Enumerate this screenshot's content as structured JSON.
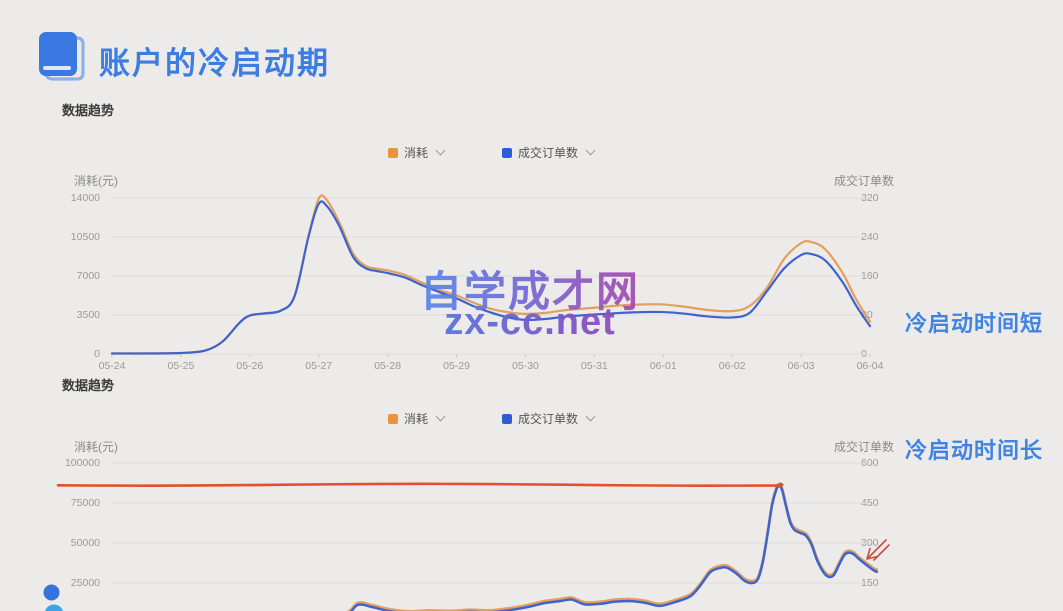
{
  "page": {
    "background": "#ecebea"
  },
  "header": {
    "title": "账户的冷启动期"
  },
  "watermark": {
    "line1": "自学成才网",
    "line2": "zx-cc.net"
  },
  "chart_data": [
    {
      "type": "line",
      "section_label": "数据趋势",
      "legend": [
        {
          "label": "消耗",
          "color": "#e8943c"
        },
        {
          "label": "成交订单数",
          "color": "#2f5bd7"
        }
      ],
      "legend_position": "top-center",
      "grid": true,
      "left_axis": {
        "label": "消耗(元)",
        "ticks": [
          14000,
          10500,
          7000,
          3500,
          0
        ],
        "range": [
          0,
          14000
        ]
      },
      "right_axis": {
        "label": "成交订单数",
        "ticks": [
          320,
          240,
          160,
          80,
          0
        ],
        "range": [
          0,
          320
        ]
      },
      "x_labels": [
        "05-24",
        "05-25",
        "05-26",
        "05-27",
        "05-28",
        "05-29",
        "05-30",
        "05-31",
        "06-01",
        "06-02",
        "06-03",
        "06-04"
      ],
      "series": [
        {
          "name": "消耗",
          "axis": "left",
          "color": "#e2a05c",
          "points": [
            [
              0,
              60
            ],
            [
              0.5,
              60
            ],
            [
              1,
              90
            ],
            [
              1.35,
              300
            ],
            [
              1.6,
              1100
            ],
            [
              1.85,
              2800
            ],
            [
              2,
              3450
            ],
            [
              2.2,
              3650
            ],
            [
              2.45,
              3900
            ],
            [
              2.65,
              5200
            ],
            [
              2.85,
              10500
            ],
            [
              3,
              13950
            ],
            [
              3.12,
              13800
            ],
            [
              3.3,
              11800
            ],
            [
              3.5,
              9000
            ],
            [
              3.68,
              7900
            ],
            [
              3.85,
              7650
            ],
            [
              4,
              7500
            ],
            [
              4.25,
              7100
            ],
            [
              4.5,
              6400
            ],
            [
              4.75,
              5750
            ],
            [
              5,
              5250
            ],
            [
              5.25,
              4600
            ],
            [
              5.5,
              4050
            ],
            [
              5.75,
              3750
            ],
            [
              6,
              3600
            ],
            [
              6.3,
              3700
            ],
            [
              6.6,
              3950
            ],
            [
              7,
              4150
            ],
            [
              7.35,
              4350
            ],
            [
              7.7,
              4450
            ],
            [
              8,
              4450
            ],
            [
              8.3,
              4250
            ],
            [
              8.65,
              3950
            ],
            [
              9,
              3850
            ],
            [
              9.25,
              4300
            ],
            [
              9.5,
              5900
            ],
            [
              9.75,
              8500
            ],
            [
              10,
              9950
            ],
            [
              10.15,
              10050
            ],
            [
              10.35,
              9400
            ],
            [
              10.6,
              7300
            ],
            [
              10.8,
              4900
            ],
            [
              11,
              2900
            ]
          ]
        },
        {
          "name": "成交订单数",
          "axis": "right",
          "color": "#3f63cc",
          "points": [
            [
              0,
              1
            ],
            [
              0.5,
              1
            ],
            [
              1,
              2
            ],
            [
              1.35,
              7
            ],
            [
              1.6,
              25
            ],
            [
              1.85,
              64
            ],
            [
              2,
              79
            ],
            [
              2.2,
              83
            ],
            [
              2.45,
              89
            ],
            [
              2.65,
              119
            ],
            [
              2.85,
              240
            ],
            [
              3,
              308
            ],
            [
              3.12,
              303
            ],
            [
              3.3,
              262
            ],
            [
              3.5,
              199
            ],
            [
              3.68,
              176
            ],
            [
              3.85,
              170
            ],
            [
              4,
              166
            ],
            [
              4.25,
              157
            ],
            [
              4.5,
              141
            ],
            [
              4.75,
              127
            ],
            [
              5,
              114
            ],
            [
              5.25,
              98
            ],
            [
              5.5,
              85
            ],
            [
              5.75,
              75
            ],
            [
              6,
              70
            ],
            [
              6.3,
              72
            ],
            [
              6.6,
              77
            ],
            [
              7,
              81
            ],
            [
              7.35,
              84
            ],
            [
              7.7,
              86
            ],
            [
              8,
              86
            ],
            [
              8.3,
              83
            ],
            [
              8.65,
              77
            ],
            [
              9,
              75
            ],
            [
              9.25,
              84
            ],
            [
              9.5,
              128
            ],
            [
              9.75,
              175
            ],
            [
              10,
              203
            ],
            [
              10.15,
              205
            ],
            [
              10.35,
              192
            ],
            [
              10.6,
              148
            ],
            [
              10.8,
              99
            ],
            [
              11,
              57
            ]
          ]
        }
      ],
      "annotation": "冷启动时间短"
    },
    {
      "type": "line",
      "section_label": "数据趋势",
      "legend": [
        {
          "label": "消耗",
          "color": "#e8943c"
        },
        {
          "label": "成交订单数",
          "color": "#2f5bd7"
        }
      ],
      "legend_position": "top-center",
      "grid": true,
      "left_axis": {
        "label": "消耗(元)",
        "ticks": [
          100000,
          75000,
          50000,
          25000
        ],
        "range": [
          0,
          100000
        ]
      },
      "right_axis": {
        "label": "成交订单数",
        "ticks": [
          600,
          450,
          300,
          150
        ],
        "range": [
          0,
          600
        ]
      },
      "x_labels": [],
      "series": [
        {
          "name": "消耗",
          "axis": "right_equiv",
          "color": "#e2a05c",
          "points": [
            [
              0.0,
              26
            ],
            [
              0.15,
              28
            ],
            [
              0.3,
              32
            ],
            [
              0.345,
              38
            ],
            [
              0.361,
              76
            ],
            [
              0.378,
              68
            ],
            [
              0.4,
              52
            ],
            [
              0.424,
              44
            ],
            [
              0.448,
              48
            ],
            [
              0.473,
              46
            ],
            [
              0.497,
              50
            ],
            [
              0.521,
              48
            ],
            [
              0.545,
              56
            ],
            [
              0.57,
              70
            ],
            [
              0.588,
              83
            ],
            [
              0.606,
              90
            ],
            [
              0.62,
              96
            ],
            [
              0.636,
              78
            ],
            [
              0.655,
              80
            ],
            [
              0.673,
              88
            ],
            [
              0.691,
              90
            ],
            [
              0.709,
              84
            ],
            [
              0.727,
              72
            ],
            [
              0.745,
              86
            ],
            [
              0.764,
              108
            ],
            [
              0.776,
              148
            ],
            [
              0.788,
              198
            ],
            [
              0.798,
              213
            ],
            [
              0.808,
              216
            ],
            [
              0.82,
              193
            ],
            [
              0.83,
              166
            ],
            [
              0.839,
              158
            ],
            [
              0.846,
              173
            ],
            [
              0.852,
              238
            ],
            [
              0.858,
              348
            ],
            [
              0.863,
              448
            ],
            [
              0.868,
              506
            ],
            [
              0.871,
              521
            ],
            [
              0.875,
              509
            ],
            [
              0.88,
              446
            ],
            [
              0.885,
              386
            ],
            [
              0.89,
              358
            ],
            [
              0.897,
              346
            ],
            [
              0.904,
              336
            ],
            [
              0.911,
              301
            ],
            [
              0.918,
              241
            ],
            [
              0.926,
              196
            ],
            [
              0.932,
              181
            ],
            [
              0.938,
              188
            ],
            [
              0.945,
              231
            ],
            [
              0.951,
              264
            ],
            [
              0.956,
              272
            ],
            [
              0.962,
              266
            ],
            [
              0.968,
              249
            ],
            [
              0.974,
              234
            ],
            [
              0.98,
              220
            ],
            [
              0.986,
              206
            ],
            [
              0.99,
              200
            ]
          ]
        },
        {
          "name": "成交订单数",
          "axis": "right",
          "color": "#3f63cc",
          "points": [
            [
              0.0,
              18
            ],
            [
              0.15,
              20
            ],
            [
              0.3,
              24
            ],
            [
              0.345,
              30
            ],
            [
              0.361,
              68
            ],
            [
              0.378,
              60
            ],
            [
              0.4,
              44
            ],
            [
              0.424,
              36
            ],
            [
              0.448,
              40
            ],
            [
              0.473,
              38
            ],
            [
              0.497,
              42
            ],
            [
              0.521,
              40
            ],
            [
              0.545,
              48
            ],
            [
              0.57,
              62
            ],
            [
              0.588,
              75
            ],
            [
              0.606,
              82
            ],
            [
              0.62,
              88
            ],
            [
              0.636,
              70
            ],
            [
              0.655,
              72
            ],
            [
              0.673,
              80
            ],
            [
              0.691,
              82
            ],
            [
              0.709,
              76
            ],
            [
              0.727,
              64
            ],
            [
              0.745,
              78
            ],
            [
              0.764,
              100
            ],
            [
              0.776,
              140
            ],
            [
              0.788,
              190
            ],
            [
              0.798,
              205
            ],
            [
              0.808,
              208
            ],
            [
              0.82,
              185
            ],
            [
              0.83,
              158
            ],
            [
              0.839,
              150
            ],
            [
              0.846,
              165
            ],
            [
              0.852,
              230
            ],
            [
              0.858,
              340
            ],
            [
              0.863,
              440
            ],
            [
              0.868,
              498
            ],
            [
              0.871,
              513
            ],
            [
              0.875,
              501
            ],
            [
              0.88,
              438
            ],
            [
              0.885,
              378
            ],
            [
              0.89,
              350
            ],
            [
              0.897,
              338
            ],
            [
              0.904,
              328
            ],
            [
              0.911,
              293
            ],
            [
              0.918,
              233
            ],
            [
              0.926,
              188
            ],
            [
              0.932,
              173
            ],
            [
              0.938,
              180
            ],
            [
              0.945,
              223
            ],
            [
              0.951,
              256
            ],
            [
              0.956,
              264
            ],
            [
              0.962,
              258
            ],
            [
              0.968,
              241
            ],
            [
              0.974,
              226
            ],
            [
              0.98,
              212
            ],
            [
              0.986,
              198
            ],
            [
              0.99,
              192
            ]
          ]
        }
      ],
      "red_line": {
        "kind": "hand-drawn-threshold",
        "value": 86400,
        "x_start_frac": 0.0,
        "x_end_frac": 0.873,
        "color": "#e2512d"
      },
      "cursor_arrow": {
        "color": "#c94f3d"
      },
      "annotation": "冷启动时间长"
    }
  ]
}
